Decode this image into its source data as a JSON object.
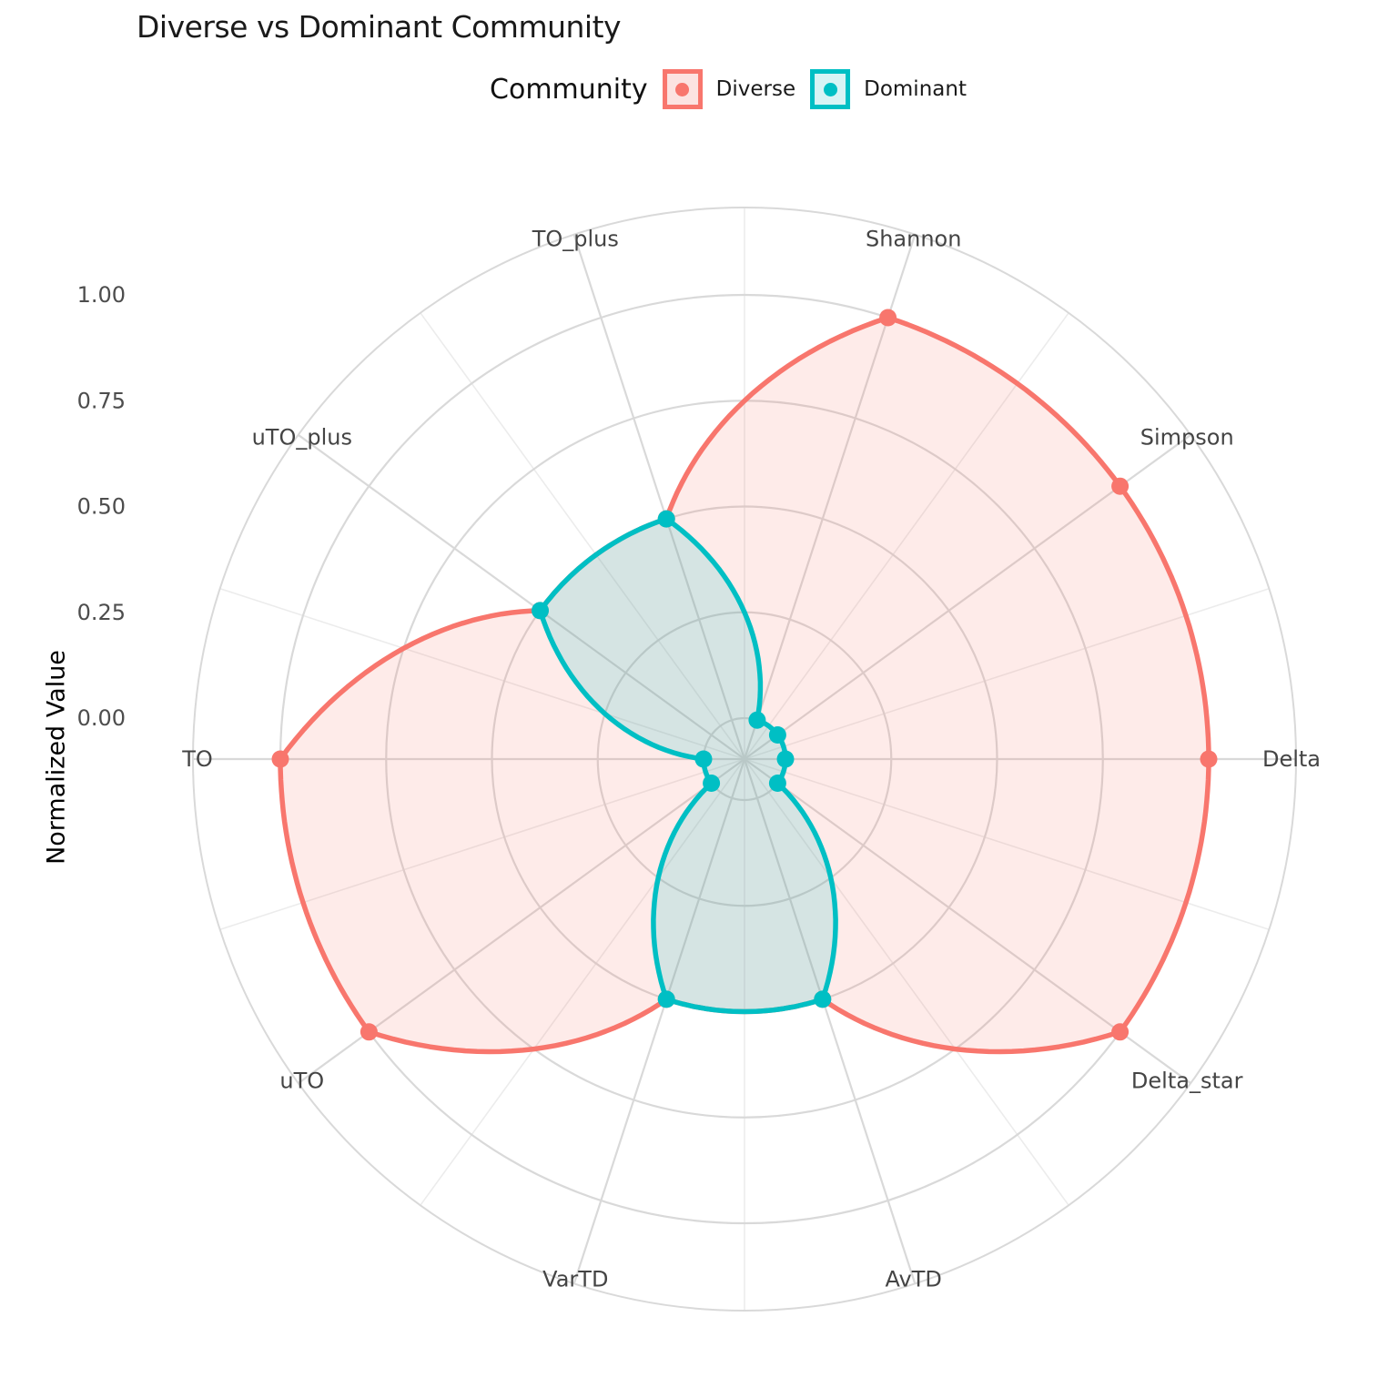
{
  "title": "Diverse vs Dominant Community",
  "legend": {
    "title": "Community",
    "items": [
      {
        "label": "Diverse",
        "color": "#F8766D",
        "swatch_fill": "#FCE3E1"
      },
      {
        "label": "Dominant",
        "color": "#00BFC4",
        "swatch_fill": "#D8F4F5"
      }
    ]
  },
  "radial_axis": {
    "title": "Normalized Value",
    "tick_labels": [
      "1.00",
      "0.75",
      "0.50",
      "0.25",
      "0.00"
    ],
    "tick_values": [
      1.0,
      0.75,
      0.5,
      0.25,
      0.0
    ]
  },
  "chart_data": {
    "type": "radar",
    "categories": [
      "Shannon",
      "Simpson",
      "Delta",
      "Delta_star",
      "AvTD",
      "VarTD",
      "uTO",
      "TO",
      "uTO_plus",
      "TO_plus"
    ],
    "series": [
      {
        "name": "Diverse",
        "color": "#F8766D",
        "fill": "rgba(248,118,109,0.15)",
        "values": [
          1.0,
          1.0,
          1.0,
          1.0,
          0.5,
          0.5,
          1.0,
          1.0,
          0.5,
          0.5
        ]
      },
      {
        "name": "Dominant",
        "color": "#00BFC4",
        "fill": "rgba(0,191,196,0.16)",
        "values": [
          0.0,
          0.0,
          0.0,
          0.0,
          0.5,
          0.5,
          0.0,
          0.0,
          0.5,
          0.5
        ]
      }
    ],
    "rlim": [
      0,
      1
    ],
    "r_breaks": [
      0,
      0.25,
      0.5,
      0.75,
      1.0
    ],
    "start_angle_deg": 18,
    "direction": "clockwise",
    "grid": "on",
    "legend_position": "top",
    "grid_color": "#D9D9D9",
    "grid_minor_color": "#ECECEC",
    "category_label_color": "#444444",
    "tick_label_color": "#4D4D4D"
  }
}
